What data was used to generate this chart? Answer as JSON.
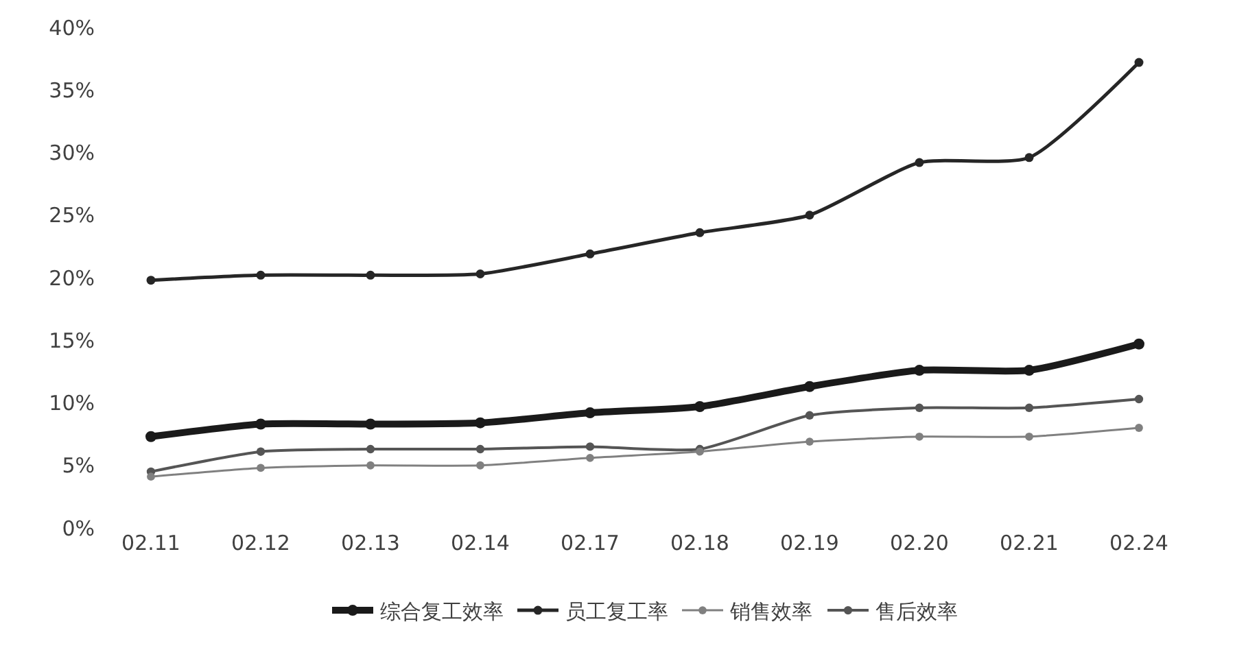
{
  "chart_data": {
    "type": "line",
    "categories": [
      "02.11",
      "02.12",
      "02.13",
      "02.14",
      "02.17",
      "02.18",
      "02.19",
      "02.20",
      "02.21",
      "02.24"
    ],
    "series": [
      {
        "name": "综合复工效率",
        "color": "#1a1a1a",
        "values": [
          7.3,
          8.3,
          8.3,
          8.4,
          9.2,
          9.7,
          11.3,
          12.6,
          12.6,
          14.7
        ]
      },
      {
        "name": "员工复工率",
        "color": "#262626",
        "values": [
          19.8,
          20.2,
          20.2,
          20.3,
          21.9,
          23.6,
          25.0,
          29.2,
          29.6,
          37.2
        ]
      },
      {
        "name": "销售效率",
        "color": "#808080",
        "values": [
          4.1,
          4.8,
          5.0,
          5.0,
          5.6,
          6.1,
          6.9,
          7.3,
          7.3,
          8.0
        ]
      },
      {
        "name": "售后效率",
        "color": "#555555",
        "values": [
          4.5,
          6.1,
          6.3,
          6.3,
          6.5,
          6.3,
          9.0,
          9.6,
          9.6,
          10.3
        ]
      }
    ],
    "ylim": [
      0,
      40
    ],
    "yticks": [
      {
        "value": 0,
        "label": "0%"
      },
      {
        "value": 5,
        "label": "5%"
      },
      {
        "value": 10,
        "label": "10%"
      },
      {
        "value": 15,
        "label": "15%"
      },
      {
        "value": 20,
        "label": "20%"
      },
      {
        "value": 25,
        "label": "25%"
      },
      {
        "value": 30,
        "label": "30%"
      },
      {
        "value": 35,
        "label": "35%"
      },
      {
        "value": 40,
        "label": "40%"
      }
    ],
    "legend": "bottom",
    "marker": "circle",
    "line_style": "solid"
  }
}
